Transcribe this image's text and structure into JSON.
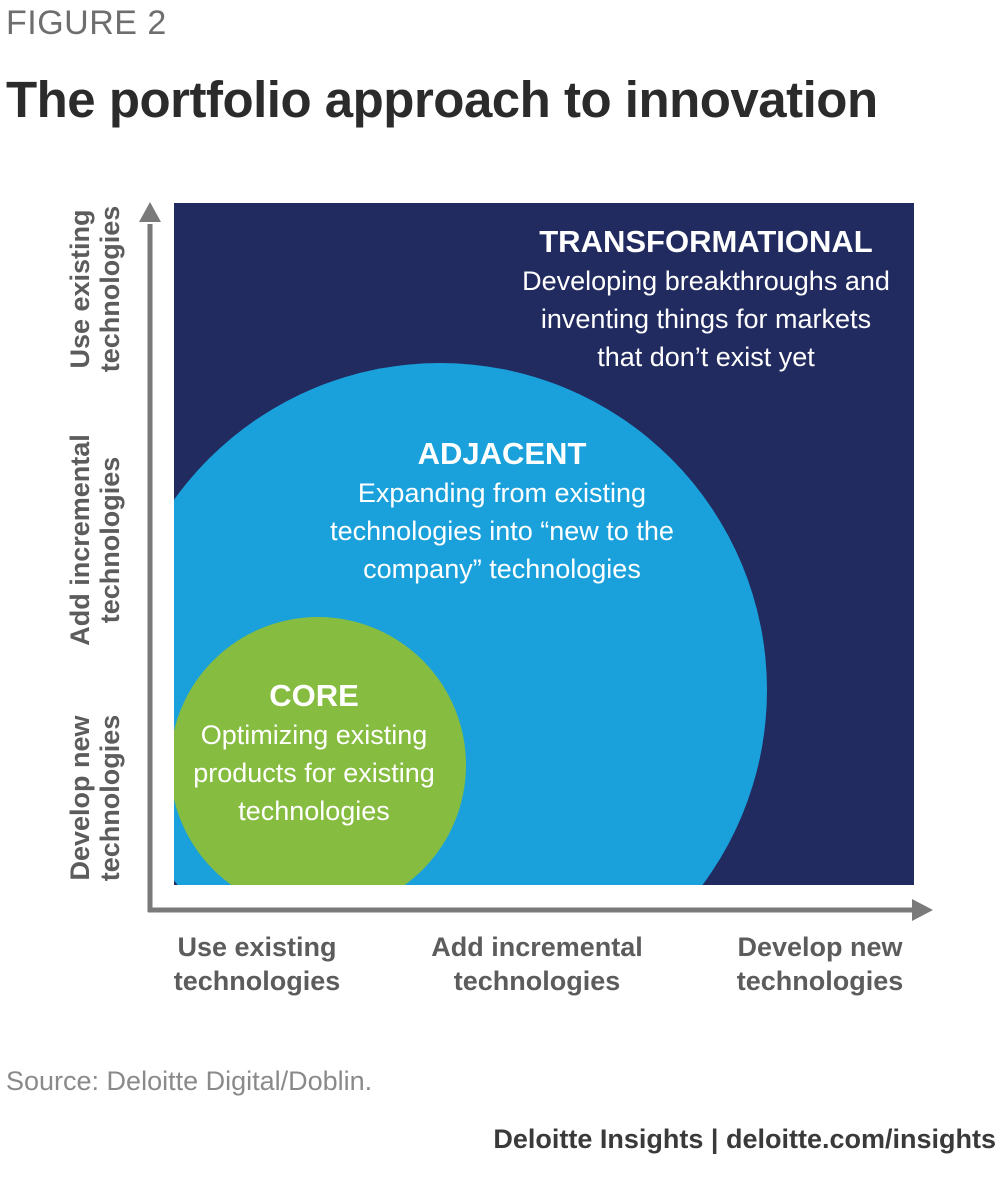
{
  "figure_label": "FIGURE 2",
  "title": "The portfolio approach to innovation",
  "y_ticks": [
    {
      "line1": "Develop new",
      "line2": "technologies"
    },
    {
      "line1": "Add incremental",
      "line2": "technologies"
    },
    {
      "line1": "Use existing",
      "line2": "technologies"
    }
  ],
  "x_ticks": [
    {
      "line1": "Use existing",
      "line2": "technologies"
    },
    {
      "line1": "Add incremental",
      "line2": "technologies"
    },
    {
      "line1": "Develop new",
      "line2": "technologies"
    }
  ],
  "zones": {
    "transformational": {
      "title": "TRANSFORMATIONAL",
      "desc": [
        "Developing breakthroughs and",
        "inventing things for markets",
        "that don’t exist yet"
      ],
      "color": "#212b5f"
    },
    "adjacent": {
      "title": "ADJACENT",
      "desc": [
        "Expanding from  existing",
        "technologies into “new to the",
        "company” technologies"
      ],
      "color": "#1aa1dc"
    },
    "core": {
      "title": "CORE",
      "desc": [
        "Optimizing existing",
        "products for existing",
        "technologies"
      ],
      "color": "#86bc40"
    }
  },
  "axis_color": "#7a7a7a",
  "source": "Source: Deloitte Digital/Doblin.",
  "credit": "Deloitte Insights | deloitte.com/insights"
}
